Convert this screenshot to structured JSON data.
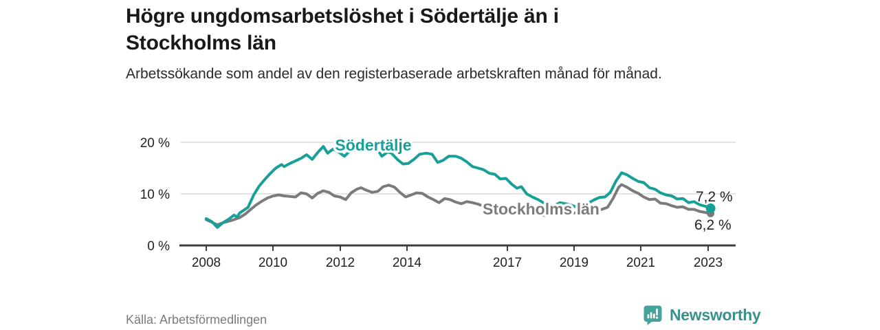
{
  "header": {
    "title": "Högre ungdomsarbetslöshet i Södertälje än i Stockholms län",
    "subtitle": "Arbetssökande som andel av den registerbaserade arbetskraften månad för månad."
  },
  "colors": {
    "soderalje_teal": "#17a098",
    "stockholm_gray": "#7b7b7b",
    "axis": "#3c3c3c",
    "grid": "#dcdcdc",
    "brand_teal": "#3a918b",
    "icon_teal": "#46a39b"
  },
  "chart_data": {
    "type": "line",
    "title": "Högre ungdomsarbetslöshet i Södertälje än i Stockholms län",
    "xlabel": "",
    "ylabel": "",
    "unit": "%",
    "xlim": [
      2007.2,
      2023.9
    ],
    "ylim": [
      0,
      22
    ],
    "grid": "horizontal",
    "legend_position": "inline-labels",
    "x_tick_labels": [
      "2008",
      "2010",
      "2012",
      "2014",
      "2017",
      "2019",
      "2021",
      "2023"
    ],
    "y_ticks": [
      {
        "value": 20,
        "label": "20 %"
      },
      {
        "value": 10,
        "label": "10 %"
      },
      {
        "value": 0,
        "label": "0 %"
      }
    ],
    "series": [
      {
        "name": "Södertälje",
        "color": "#17a098",
        "end_label": "7,2 %",
        "end_value": 7.2,
        "points": [
          [
            2008,
            5.2
          ],
          [
            2008.17,
            4.6
          ],
          [
            2008.33,
            3.5
          ],
          [
            2008.5,
            4.4
          ],
          [
            2008.67,
            5.1
          ],
          [
            2008.83,
            5.9
          ],
          [
            2008.92,
            5.5
          ],
          [
            2009,
            6.3
          ],
          [
            2009.25,
            7.4
          ],
          [
            2009.42,
            9.8
          ],
          [
            2009.58,
            11.5
          ],
          [
            2009.75,
            12.8
          ],
          [
            2009.92,
            14
          ],
          [
            2010.08,
            15
          ],
          [
            2010.25,
            15.7
          ],
          [
            2010.33,
            15.3
          ],
          [
            2010.5,
            15.9
          ],
          [
            2010.67,
            16.4
          ],
          [
            2010.83,
            16.9
          ],
          [
            2011,
            17.6
          ],
          [
            2011.17,
            16.7
          ],
          [
            2011.33,
            18
          ],
          [
            2011.5,
            19.2
          ],
          [
            2011.63,
            17.9
          ],
          [
            2011.79,
            18.7
          ],
          [
            2011.96,
            18.1
          ],
          [
            2012.13,
            17.3
          ],
          [
            2012.29,
            18.3
          ],
          [
            2012.5,
            18.5
          ],
          [
            2012.71,
            18.7
          ],
          [
            2012.92,
            18.3
          ],
          [
            2013.13,
            18.5
          ],
          [
            2013.25,
            17.3
          ],
          [
            2013.42,
            18.1
          ],
          [
            2013.54,
            17.9
          ],
          [
            2013.71,
            16.7
          ],
          [
            2013.88,
            15.8
          ],
          [
            2014.04,
            15.9
          ],
          [
            2014.21,
            16.7
          ],
          [
            2014.38,
            17.7
          ],
          [
            2014.58,
            17.9
          ],
          [
            2014.75,
            17.7
          ],
          [
            2014.92,
            16.1
          ],
          [
            2015.08,
            16.5
          ],
          [
            2015.25,
            17.3
          ],
          [
            2015.46,
            17.3
          ],
          [
            2015.63,
            16.9
          ],
          [
            2015.79,
            16.2
          ],
          [
            2015.96,
            15.3
          ],
          [
            2016.13,
            15
          ],
          [
            2016.29,
            14.7
          ],
          [
            2016.46,
            14
          ],
          [
            2016.63,
            13.8
          ],
          [
            2016.79,
            12.9
          ],
          [
            2016.96,
            13
          ],
          [
            2017.13,
            11.9
          ],
          [
            2017.29,
            11.1
          ],
          [
            2017.42,
            11.4
          ],
          [
            2017.58,
            10
          ],
          [
            2017.75,
            9.4
          ],
          [
            2017.92,
            8.9
          ],
          [
            2018.08,
            8.3
          ],
          [
            2018.25,
            7.9
          ],
          [
            2018.42,
            7.8
          ],
          [
            2018.58,
            8.3
          ],
          [
            2018.75,
            8.1
          ],
          [
            2018.92,
            7.8
          ],
          [
            2019.08,
            7.4
          ],
          [
            2019.25,
            7.7
          ],
          [
            2019.42,
            8.2
          ],
          [
            2019.58,
            8.8
          ],
          [
            2019.75,
            9.3
          ],
          [
            2019.92,
            9.4
          ],
          [
            2020.08,
            10.3
          ],
          [
            2020.25,
            12.5
          ],
          [
            2020.42,
            14.1
          ],
          [
            2020.58,
            13.7
          ],
          [
            2020.75,
            13
          ],
          [
            2020.92,
            12.4
          ],
          [
            2021.08,
            12.2
          ],
          [
            2021.25,
            11.2
          ],
          [
            2021.42,
            10.9
          ],
          [
            2021.58,
            10.2
          ],
          [
            2021.75,
            9.8
          ],
          [
            2021.92,
            9.6
          ],
          [
            2022.08,
            9
          ],
          [
            2022.25,
            9.1
          ],
          [
            2022.42,
            8.3
          ],
          [
            2022.58,
            8.5
          ],
          [
            2022.75,
            7.9
          ],
          [
            2022.92,
            7.6
          ],
          [
            2023.08,
            7.2
          ]
        ]
      },
      {
        "name": "Stockholms län",
        "color": "#7b7b7b",
        "end_label": "6,2 %",
        "end_value": 6.2,
        "points": [
          [
            2008,
            5
          ],
          [
            2008.17,
            4.5
          ],
          [
            2008.33,
            4
          ],
          [
            2008.5,
            4.4
          ],
          [
            2008.67,
            4.7
          ],
          [
            2008.83,
            5
          ],
          [
            2009,
            5.4
          ],
          [
            2009.17,
            6.1
          ],
          [
            2009.33,
            7
          ],
          [
            2009.5,
            7.9
          ],
          [
            2009.67,
            8.6
          ],
          [
            2009.83,
            9.2
          ],
          [
            2010,
            9.6
          ],
          [
            2010.17,
            9.8
          ],
          [
            2010.33,
            9.6
          ],
          [
            2010.5,
            9.5
          ],
          [
            2010.67,
            9.4
          ],
          [
            2010.83,
            10.2
          ],
          [
            2011,
            10
          ],
          [
            2011.17,
            9.2
          ],
          [
            2011.33,
            10.1
          ],
          [
            2011.5,
            10.6
          ],
          [
            2011.67,
            10.3
          ],
          [
            2011.83,
            9.6
          ],
          [
            2012,
            9.4
          ],
          [
            2012.17,
            8.9
          ],
          [
            2012.33,
            10.2
          ],
          [
            2012.5,
            10.9
          ],
          [
            2012.63,
            11.2
          ],
          [
            2012.79,
            10.7
          ],
          [
            2012.96,
            10.3
          ],
          [
            2013.13,
            10.5
          ],
          [
            2013.29,
            11.4
          ],
          [
            2013.46,
            11.7
          ],
          [
            2013.63,
            11.3
          ],
          [
            2013.79,
            10.3
          ],
          [
            2013.96,
            9.4
          ],
          [
            2014.13,
            9.8
          ],
          [
            2014.29,
            10.2
          ],
          [
            2014.46,
            10.1
          ],
          [
            2014.63,
            9.4
          ],
          [
            2014.79,
            8.9
          ],
          [
            2014.96,
            8.3
          ],
          [
            2015.13,
            9.1
          ],
          [
            2015.29,
            8.9
          ],
          [
            2015.46,
            8.4
          ],
          [
            2015.63,
            8.1
          ],
          [
            2015.79,
            8.5
          ],
          [
            2015.96,
            8.3
          ],
          [
            2016.13,
            8
          ],
          [
            2016.29,
            7.6
          ],
          [
            2016.46,
            7.8
          ],
          [
            2016.63,
            7.3
          ],
          [
            2016.79,
            7
          ],
          [
            2016.96,
            6.7
          ],
          [
            2017.13,
            6.5
          ],
          [
            2017.33,
            6.3
          ],
          [
            2017.54,
            6.1
          ],
          [
            2017.75,
            6
          ],
          [
            2017.96,
            5.9
          ],
          [
            2018.17,
            5.8
          ],
          [
            2018.38,
            5.9
          ],
          [
            2018.58,
            6
          ],
          [
            2018.79,
            6.1
          ],
          [
            2019,
            6.3
          ],
          [
            2019.21,
            6.4
          ],
          [
            2019.42,
            6.6
          ],
          [
            2019.63,
            6.8
          ],
          [
            2019.83,
            7
          ],
          [
            2020,
            7.4
          ],
          [
            2020.17,
            9.2
          ],
          [
            2020.33,
            11.3
          ],
          [
            2020.42,
            11.8
          ],
          [
            2020.58,
            11.3
          ],
          [
            2020.75,
            10.6
          ],
          [
            2020.92,
            10.1
          ],
          [
            2021.08,
            9.4
          ],
          [
            2021.25,
            8.9
          ],
          [
            2021.42,
            9
          ],
          [
            2021.58,
            8.2
          ],
          [
            2021.75,
            8.1
          ],
          [
            2021.92,
            7.7
          ],
          [
            2022.08,
            7.4
          ],
          [
            2022.25,
            7.5
          ],
          [
            2022.42,
            7
          ],
          [
            2022.58,
            7
          ],
          [
            2022.75,
            6.6
          ],
          [
            2022.92,
            6.4
          ],
          [
            2023.08,
            6.2
          ]
        ]
      }
    ]
  },
  "footer": {
    "source": "Källa: Arbetsförmedlingen",
    "brand_name": "Newsworthy"
  },
  "icons": {
    "brand_icon": "newsworthy-speech-bubble-bar-chart-icon"
  }
}
